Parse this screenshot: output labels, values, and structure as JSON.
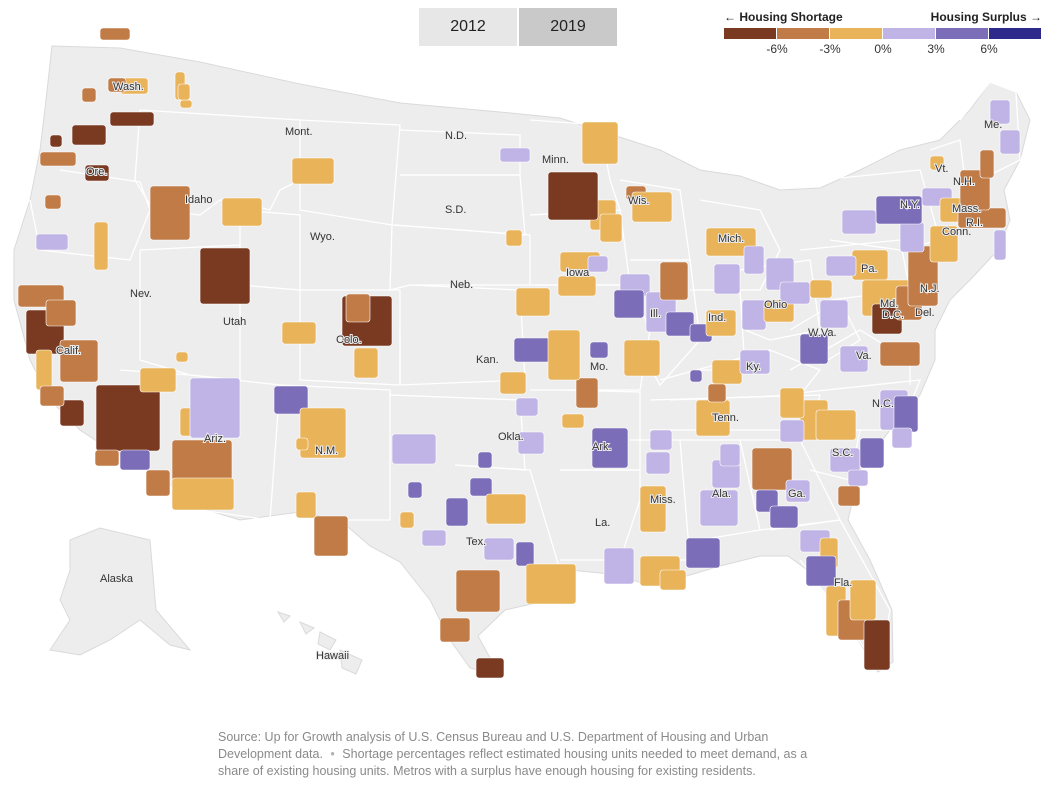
{
  "year_toggle": {
    "options": [
      {
        "label": "2012",
        "selected": false
      },
      {
        "label": "2019",
        "selected": true
      }
    ]
  },
  "legend": {
    "left_label": "← Housing Shortage",
    "right_label": "Housing Surplus →",
    "ticks": [
      "-6%",
      "-3%",
      "0%",
      "3%",
      "6%"
    ],
    "colors": [
      "#7a3a22",
      "#c07b47",
      "#e9b35a",
      "#c0b3e6",
      "#7b6db8",
      "#2e2a8c"
    ]
  },
  "map": {
    "base_color": "#ededed",
    "border_color": "#ffffff",
    "state_labels": [
      "Wash.",
      "Ore.",
      "Calif.",
      "Nev.",
      "Idaho",
      "Mont.",
      "Wyo.",
      "Utah",
      "Colo.",
      "Ariz.",
      "N.M.",
      "N.D.",
      "S.D.",
      "Neb.",
      "Kan.",
      "Okla.",
      "Tex.",
      "Minn.",
      "Iowa",
      "Mo.",
      "Ark.",
      "La.",
      "Wis.",
      "Ill.",
      "Mich.",
      "Ind.",
      "Ohio",
      "Ky.",
      "Tenn.",
      "Miss.",
      "Ala.",
      "Ga.",
      "Fla.",
      "S.C.",
      "N.C.",
      "Va.",
      "W.Va.",
      "Pa.",
      "N.Y.",
      "Vt.",
      "N.H.",
      "Me.",
      "Mass.",
      "R.I.",
      "Conn.",
      "N.J.",
      "Del.",
      "Md.",
      "D.C.",
      "Alaska",
      "Hawaii"
    ]
  },
  "source_note": {
    "text": "Source: Up for Growth analysis of U.S. Census Bureau and U.S. Department of Housing and Urban Development data.",
    "separator": "•",
    "notes": "Shortage percentages reflect estimated housing units needed to meet demand, as a share of existing housing units. Metros with a surplus have enough housing for existing residents."
  }
}
